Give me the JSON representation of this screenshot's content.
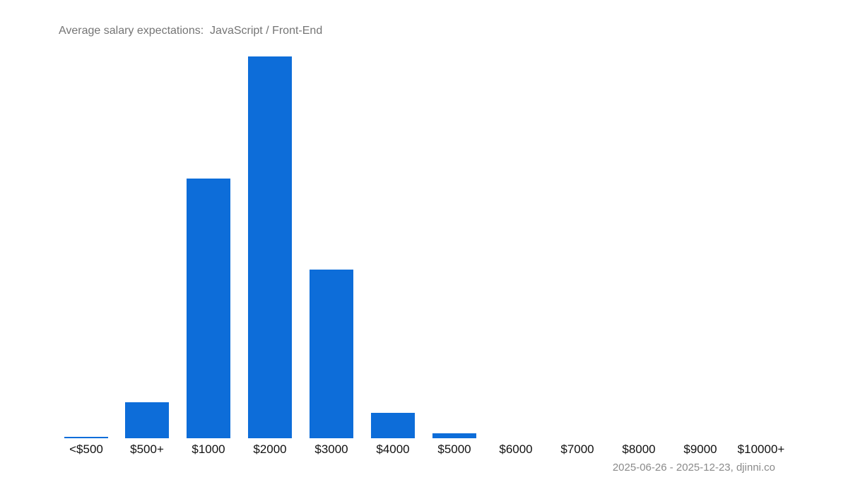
{
  "page": {
    "background": "#ffffff"
  },
  "chart_data": {
    "type": "bar",
    "title": "Average salary expectations:  JavaScript / Front-End",
    "footer": "2025-06-26 - 2025-12-23, djinni.co",
    "categories": [
      "<$500",
      "$500+",
      "$1000",
      "$2000",
      "$3000",
      "$4000",
      "$5000",
      "$6000",
      "$7000",
      "$8000",
      "$9000",
      "$10000+"
    ],
    "values": [
      0.4,
      9.4,
      68.0,
      100,
      44.2,
      6.7,
      1.3,
      0,
      0,
      0,
      0,
      0
    ],
    "values_unit": "relative height, percent of tallest bar (chart shows no y-axis labels)",
    "xlabel": "",
    "ylabel": "",
    "ylim": [
      0,
      100
    ],
    "grid": false,
    "legend": "none",
    "colors": {
      "bar": "#0d6dd9",
      "title": "#757575",
      "axis_labels": "#111111",
      "footer": "#8a8a8a"
    }
  }
}
